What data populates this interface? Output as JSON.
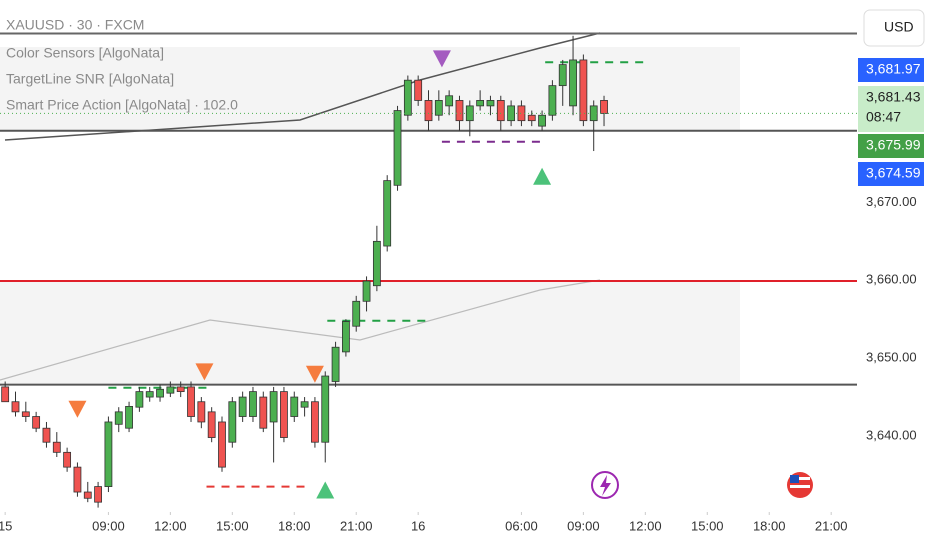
{
  "chart_data": {
    "type": "candlestick",
    "legend": [
      "XAUUSD · 30 · FXCM",
      "Color Sensors [AlgoNata]",
      "TargetLine SNR [AlgoNata]",
      "Smart Price Action [AlgoNata] · 102.0"
    ],
    "currency_button": "USD",
    "up_color": "#4caf50",
    "down_color": "#ef5350",
    "open": [
      3646.3,
      3644.4,
      3643.1,
      3642.5,
      3641.0,
      3639.2,
      3637.9,
      3636.0,
      3632.8,
      3633.5,
      3633.5,
      3641.5,
      3641.0,
      3643.7,
      3645.0,
      3645.0,
      3645.5,
      3646.3,
      3646.3,
      3644.4,
      3643.1,
      3641.8,
      3639.2,
      3642.5,
      3642.5,
      3645.0,
      3641.8,
      3645.7,
      3642.5,
      3643.7,
      3644.4,
      3639.2,
      3647.0,
      3650.8,
      3654.1,
      3657.3,
      3659.3,
      3664.4,
      3672.2,
      3681.2,
      3685.7,
      3683.1,
      3681.2,
      3682.4,
      3683.1,
      3680.5,
      3682.4,
      3682.4,
      3683.1,
      3680.5,
      3682.4,
      3681.2,
      3679.8,
      3681.2,
      3685.0,
      3682.4,
      3688.3,
      3680.5,
      3683.1
    ],
    "high": [
      3647.0,
      3645.7,
      3644.4,
      3643.1,
      3641.8,
      3640.5,
      3638.5,
      3636.6,
      3634.1,
      3634.1,
      3642.5,
      3643.7,
      3644.4,
      3646.3,
      3646.3,
      3646.6,
      3647.0,
      3647.0,
      3647.0,
      3645.0,
      3643.7,
      3642.5,
      3645.0,
      3645.7,
      3646.3,
      3645.7,
      3646.3,
      3646.3,
      3645.7,
      3645.0,
      3645.0,
      3648.3,
      3652.1,
      3655.0,
      3658.0,
      3660.5,
      3667.0,
      3673.5,
      3682.4,
      3686.3,
      3686.3,
      3684.4,
      3684.4,
      3684.4,
      3683.7,
      3683.1,
      3684.4,
      3683.7,
      3683.7,
      3683.1,
      3683.1,
      3681.8,
      3681.8,
      3685.7,
      3688.3,
      3691.4,
      3689.0,
      3683.1,
      3683.7
    ],
    "low": [
      3644.4,
      3642.5,
      3641.8,
      3640.5,
      3638.5,
      3637.3,
      3635.4,
      3632.2,
      3631.5,
      3630.8,
      3632.8,
      3640.5,
      3640.5,
      3643.1,
      3644.4,
      3644.4,
      3645.0,
      3645.0,
      3641.8,
      3641.0,
      3639.2,
      3635.4,
      3638.5,
      3641.8,
      3641.8,
      3640.5,
      3636.6,
      3639.2,
      3641.8,
      3642.5,
      3638.5,
      3636.6,
      3646.3,
      3650.2,
      3653.4,
      3656.0,
      3658.6,
      3663.7,
      3671.5,
      3680.5,
      3682.4,
      3679.2,
      3680.5,
      3681.2,
      3679.2,
      3678.5,
      3681.8,
      3681.2,
      3679.2,
      3679.8,
      3679.8,
      3679.8,
      3679.2,
      3680.5,
      3682.4,
      3681.2,
      3679.8,
      3676.6,
      3679.8
    ],
    "close": [
      3644.4,
      3643.1,
      3642.5,
      3641.0,
      3639.2,
      3637.9,
      3636.0,
      3632.8,
      3632.0,
      3631.5,
      3641.8,
      3643.1,
      3643.8,
      3645.7,
      3645.7,
      3646.0,
      3646.3,
      3645.7,
      3642.5,
      3641.8,
      3639.8,
      3636.0,
      3644.4,
      3645.0,
      3645.7,
      3641.0,
      3645.7,
      3639.8,
      3645.0,
      3644.4,
      3639.2,
      3647.7,
      3651.4,
      3654.7,
      3657.3,
      3659.9,
      3665.0,
      3672.8,
      3681.8,
      3685.7,
      3683.1,
      3680.5,
      3683.1,
      3683.7,
      3680.5,
      3682.4,
      3683.1,
      3683.1,
      3680.5,
      3682.4,
      3680.5,
      3680.5,
      3681.2,
      3685.0,
      3687.7,
      3688.3,
      3680.5,
      3682.4,
      3681.43
    ],
    "xlim": [
      -0.5,
      82.5
    ],
    "xticks": [
      {
        "value": 0,
        "label": "15"
      },
      {
        "value": 10,
        "label": "09:00"
      },
      {
        "value": 16,
        "label": "12:00"
      },
      {
        "value": 22,
        "label": "15:00"
      },
      {
        "value": 28,
        "label": "18:00"
      },
      {
        "value": 34,
        "label": "21:00"
      },
      {
        "value": 40,
        "label": "16"
      },
      {
        "value": 50,
        "label": "06:00"
      },
      {
        "value": 56,
        "label": "09:00"
      },
      {
        "value": 62,
        "label": "12:00"
      },
      {
        "value": 68,
        "label": "15:00"
      },
      {
        "value": 74,
        "label": "18:00"
      },
      {
        "value": 80,
        "label": "21:00"
      }
    ],
    "ylim": [
      3630.3,
      3696
    ],
    "yticks": [
      {
        "value": 3640,
        "label": "3,640.00"
      },
      {
        "value": 3650,
        "label": "3,650.00"
      },
      {
        "value": 3660,
        "label": "3,660.00"
      },
      {
        "value": 3670,
        "label": "3,670.00"
      }
    ],
    "levels": [
      {
        "value": 3691.7,
        "color": "#666666"
      },
      {
        "value": 3679.2,
        "color": "#555555"
      },
      {
        "value": 3659.9,
        "color": "#e0202a"
      },
      {
        "value": 3646.6,
        "color": "#555555"
      }
    ],
    "segments": [
      {
        "value": 3688.0,
        "from": 52.3,
        "to": 62,
        "color": "#22a045"
      },
      {
        "value": 3677.8,
        "from": 42.3,
        "to": 52,
        "color": "#7b2b8e"
      },
      {
        "value": 3654.8,
        "from": 31.2,
        "to": 41,
        "color": "#22a045"
      },
      {
        "value": 3646.2,
        "from": 10,
        "to": 20,
        "color": "#22a045"
      },
      {
        "value": 3633.5,
        "from": 19.5,
        "to": 29,
        "color": "#e53935"
      }
    ],
    "signals": [
      {
        "index": 42.3,
        "value": 3688.5,
        "marker": "triangle-down",
        "color": "#a45bc0"
      },
      {
        "index": 52,
        "value": 3673.3,
        "marker": "triangle-up",
        "color": "#4cc27a"
      },
      {
        "index": 31,
        "value": 3633.0,
        "marker": "triangle-up",
        "color": "#4cc27a"
      },
      {
        "index": 7,
        "value": 3643.5,
        "marker": "triangle-down",
        "color": "#f57c3e"
      },
      {
        "index": 19.3,
        "value": 3648.3,
        "marker": "triangle-down",
        "color": "#f57c3e"
      },
      {
        "index": 30,
        "value": 3648.0,
        "marker": "triangle-down",
        "color": "#f57c3e"
      }
    ],
    "price_labels": [
      {
        "value": {
          "value": 3681.97,
          "label": "3,681.97"
        },
        "color": "#2962ff",
        "text_color": "#ffffff"
      },
      {
        "value": {
          "value": 3681.43,
          "label": "3,681.43"
        },
        "color": "#c8ecc9",
        "text_color": "#222222",
        "countdown": "08:47"
      },
      {
        "value": {
          "value": 3675.99,
          "label": "3,675.99"
        },
        "color": "#43a047",
        "text_color": "#ffffff"
      },
      {
        "value": {
          "value": 3674.59,
          "label": "3,674.59"
        },
        "color": "#2962ff",
        "text_color": "#ffffff"
      }
    ]
  }
}
